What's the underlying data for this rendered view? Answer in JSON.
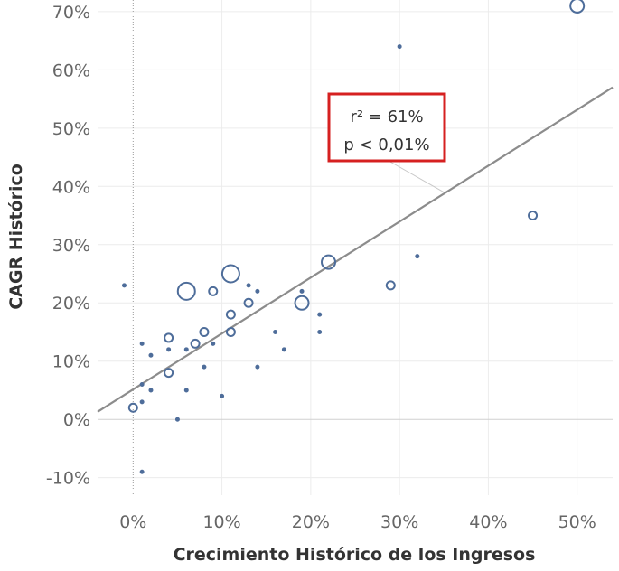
{
  "chart_data": {
    "type": "scatter",
    "xlabel": "Crecimiento Histórico de los Ingresos",
    "ylabel": "CAGR Histórico",
    "xlim": [
      -4,
      54
    ],
    "ylim": [
      -13,
      72
    ],
    "x_ticks": [
      "0%",
      "10%",
      "20%",
      "30%",
      "40%",
      "50%"
    ],
    "y_ticks": [
      "-10%",
      "0%",
      "10%",
      "20%",
      "30%",
      "40%",
      "50%",
      "60%",
      "70%"
    ],
    "grid": true,
    "marker_color": "#4e6d9a",
    "trendline": {
      "x": [
        -4,
        54
      ],
      "y": [
        1.3,
        57
      ],
      "color": "#8c8c8c"
    },
    "annotation": {
      "line1": "r² = 61%",
      "line2": "p < 0,01%",
      "points_to": {
        "x": 35,
        "y": 39
      },
      "border_color": "#d62020"
    },
    "points": [
      {
        "x": 50,
        "y": 71,
        "size": 3
      },
      {
        "x": 30,
        "y": 64,
        "size": 1
      },
      {
        "x": 45,
        "y": 35,
        "size": 2
      },
      {
        "x": 32,
        "y": 28,
        "size": 1
      },
      {
        "x": 29,
        "y": 23,
        "size": 2
      },
      {
        "x": 22,
        "y": 27,
        "size": 3
      },
      {
        "x": 19,
        "y": 20,
        "size": 3
      },
      {
        "x": 19,
        "y": 22,
        "size": 1
      },
      {
        "x": 21,
        "y": 18,
        "size": 1
      },
      {
        "x": 21,
        "y": 15,
        "size": 1
      },
      {
        "x": 17,
        "y": 12,
        "size": 1
      },
      {
        "x": 16,
        "y": 15,
        "size": 1
      },
      {
        "x": 14,
        "y": 22,
        "size": 1
      },
      {
        "x": 14,
        "y": 9,
        "size": 1
      },
      {
        "x": 13,
        "y": 23,
        "size": 1
      },
      {
        "x": 13,
        "y": 20,
        "size": 2
      },
      {
        "x": 11,
        "y": 25,
        "size": 4
      },
      {
        "x": 11,
        "y": 18,
        "size": 2
      },
      {
        "x": 11,
        "y": 15,
        "size": 2
      },
      {
        "x": 10,
        "y": 4,
        "size": 1
      },
      {
        "x": 9,
        "y": 22,
        "size": 2
      },
      {
        "x": 9,
        "y": 13,
        "size": 1
      },
      {
        "x": 8,
        "y": 15,
        "size": 2
      },
      {
        "x": 8,
        "y": 9,
        "size": 1
      },
      {
        "x": 7,
        "y": 13,
        "size": 2
      },
      {
        "x": 6,
        "y": 22,
        "size": 4
      },
      {
        "x": 6,
        "y": 12,
        "size": 1
      },
      {
        "x": 6,
        "y": 5,
        "size": 1
      },
      {
        "x": 5,
        "y": 0,
        "size": 1
      },
      {
        "x": 4,
        "y": 14,
        "size": 2
      },
      {
        "x": 4,
        "y": 12,
        "size": 1
      },
      {
        "x": 4,
        "y": 8,
        "size": 2
      },
      {
        "x": 2,
        "y": 11,
        "size": 1
      },
      {
        "x": 2,
        "y": 5,
        "size": 1
      },
      {
        "x": 1,
        "y": 13,
        "size": 1
      },
      {
        "x": 1,
        "y": 6,
        "size": 1
      },
      {
        "x": 1,
        "y": 3,
        "size": 1
      },
      {
        "x": 1,
        "y": -9,
        "size": 1
      },
      {
        "x": 0,
        "y": 2,
        "size": 2
      },
      {
        "x": -1,
        "y": 23,
        "size": 1
      }
    ]
  }
}
